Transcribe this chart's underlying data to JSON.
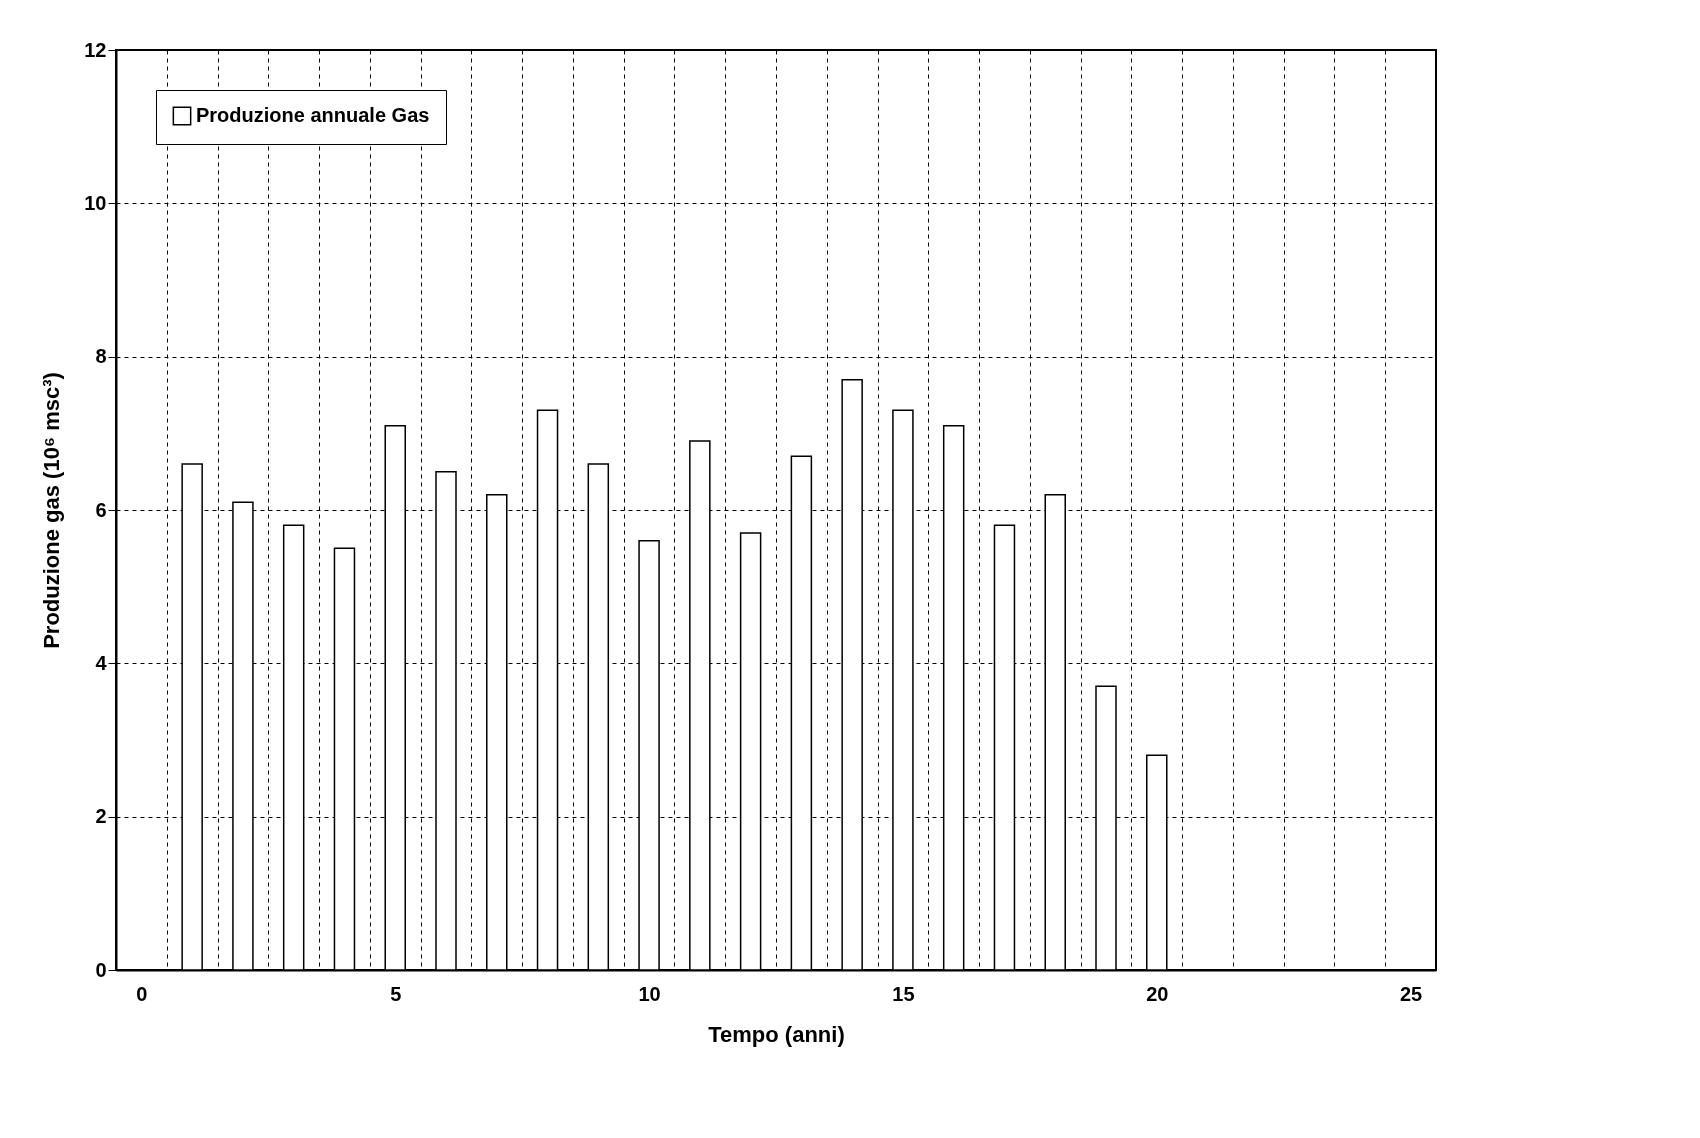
{
  "chart_data": {
    "type": "bar",
    "xlabel": "Tempo (anni)",
    "ylabel": "Produzione gas (10⁶ msc³)",
    "categories": [
      "0",
      null,
      null,
      null,
      null,
      "5",
      null,
      null,
      null,
      null,
      "10",
      null,
      null,
      null,
      null,
      "15",
      null,
      null,
      null,
      null,
      "20",
      null,
      null,
      null,
      null,
      "25"
    ],
    "series": [
      {
        "name": "Produzione annuale Gas",
        "color": "#ffffff",
        "values": [
          null,
          6.6,
          6.1,
          5.8,
          5.5,
          7.1,
          6.5,
          6.2,
          7.3,
          6.6,
          5.6,
          6.9,
          5.7,
          6.7,
          7.7,
          7.3,
          7.1,
          5.8,
          6.2,
          3.7,
          2.8,
          null,
          null,
          null,
          null,
          null
        ]
      }
    ],
    "ylim": [
      0,
      12
    ],
    "yticks": [
      0,
      2,
      4,
      6,
      8,
      10,
      12
    ],
    "grid": true,
    "legend": "top left"
  }
}
